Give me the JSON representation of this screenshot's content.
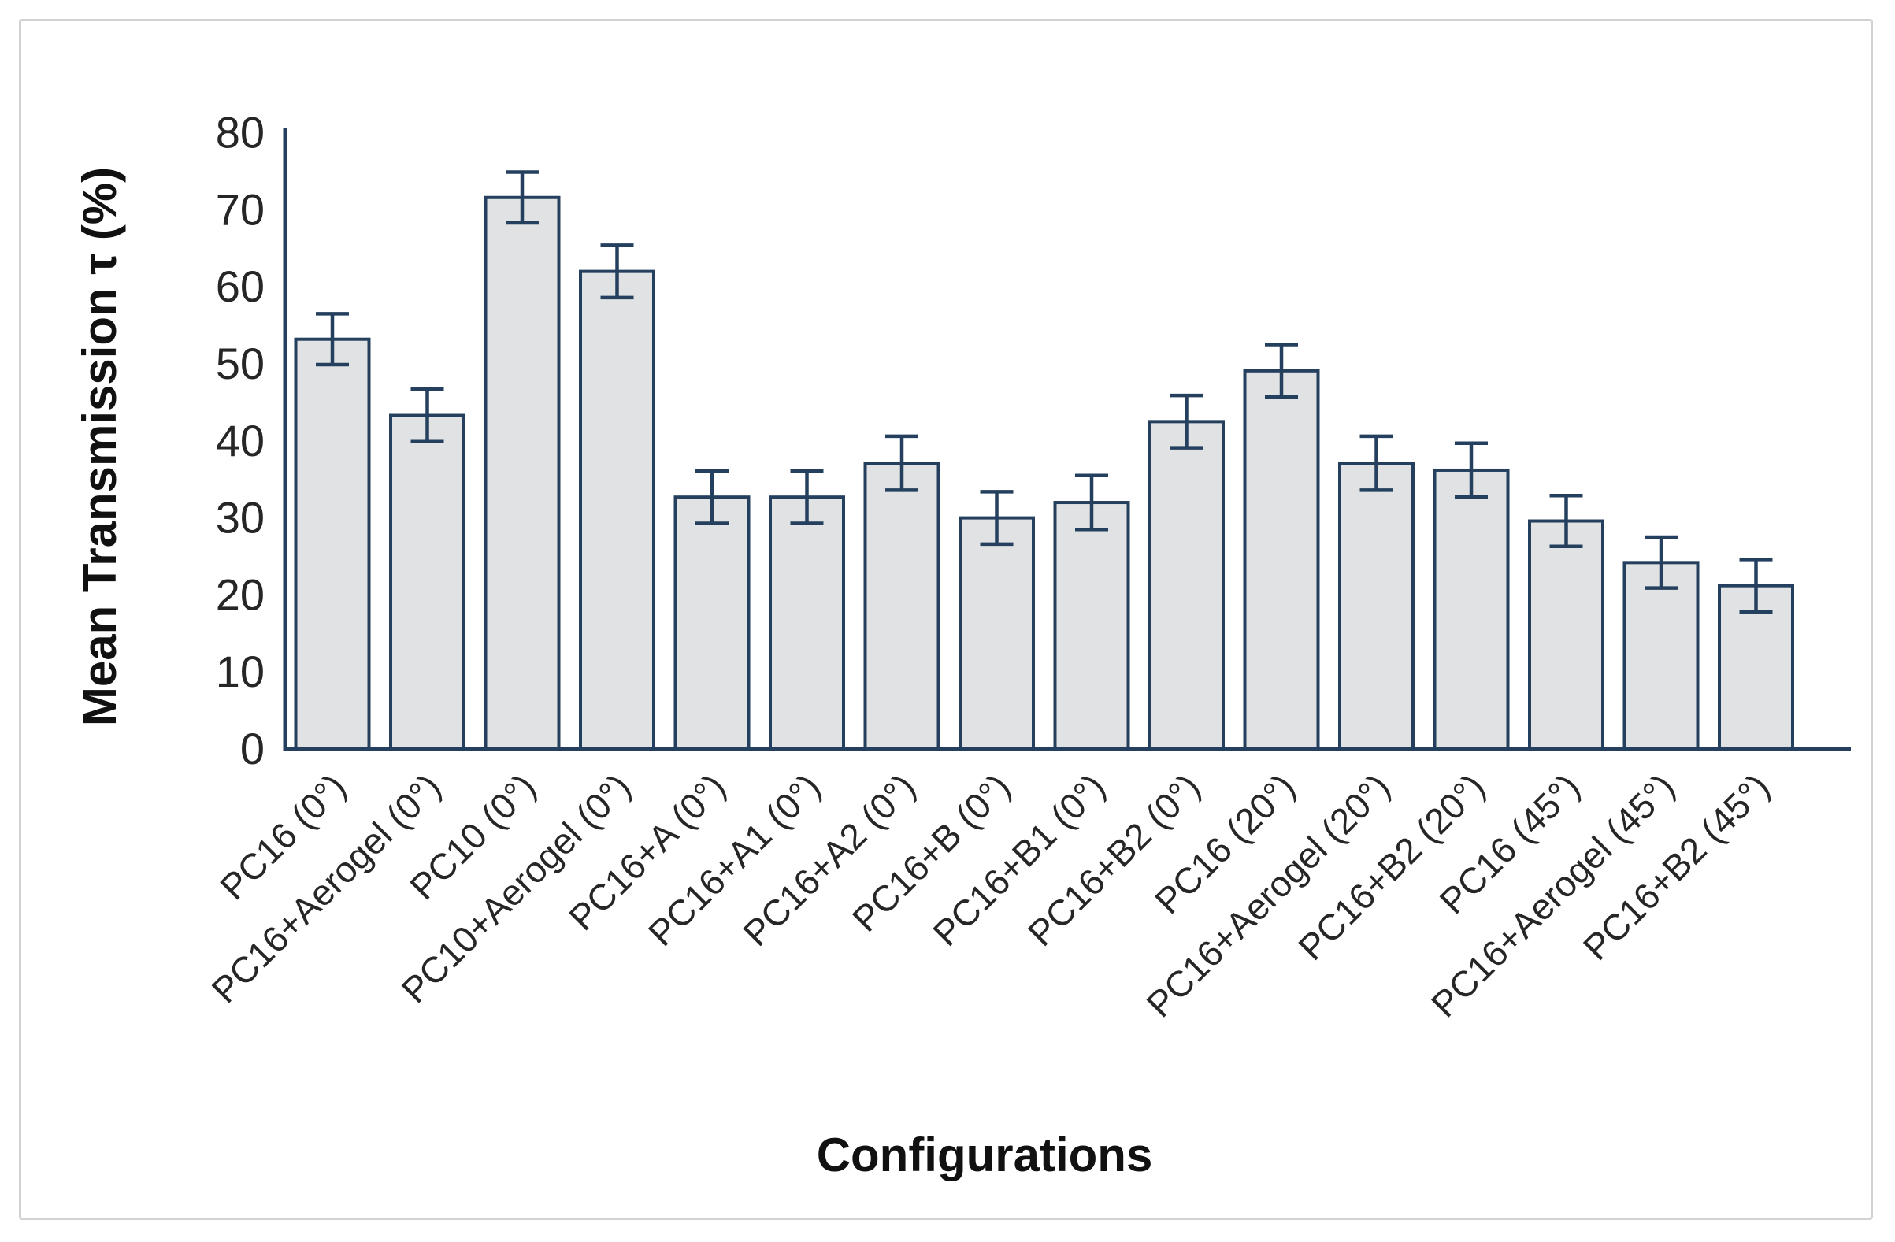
{
  "figure": {
    "background": "#ffffff",
    "border_color": "#d2d2d2"
  },
  "chart_data": {
    "type": "bar",
    "title": "",
    "xlabel": "Configurations",
    "ylabel": "Mean Transmission τ (%)",
    "ylim": [
      0,
      80
    ],
    "ytick_step": 10,
    "ytick_labels": [
      "0",
      "10",
      "20",
      "30",
      "40",
      "50",
      "60",
      "70",
      "80"
    ],
    "grid": false,
    "legend": null,
    "categories": [
      "PC16 (0°)",
      "PC16+Aerogel (0°)",
      "PC10 (0°)",
      "PC10+Aerogel (0°)",
      "PC16+A (0°)",
      "PC16+A1 (0°)",
      "PC16+A2 (0°)",
      "PC16+B (0°)",
      "PC16+B1 (0°)",
      "PC16+B2 (0°)",
      "PC16 (20°)",
      "PC16+Aerogel (20°)",
      "PC16+B2 (20°)",
      "PC16 (45°)",
      "PC16+Aerogel (45°)",
      "PC16+B2 (45°)"
    ],
    "series": [
      {
        "name": "Mean Transmission",
        "values": [
          53.2,
          43.3,
          71.6,
          62.0,
          32.7,
          32.7,
          37.1,
          30.0,
          32.0,
          42.5,
          49.1,
          37.1,
          36.2,
          29.6,
          24.2,
          21.2
        ],
        "errors": [
          3.3,
          3.4,
          3.3,
          3.4,
          3.4,
          3.4,
          3.5,
          3.4,
          3.5,
          3.4,
          3.4,
          3.5,
          3.5,
          3.3,
          3.3,
          3.4
        ]
      }
    ],
    "colors": {
      "bar_fill": "#e1e2e3",
      "bar_stroke": "#24405e",
      "axis": "#24405e",
      "error_bar": "#24405e",
      "tick_label": "#262626",
      "category_label": "#262626"
    }
  }
}
